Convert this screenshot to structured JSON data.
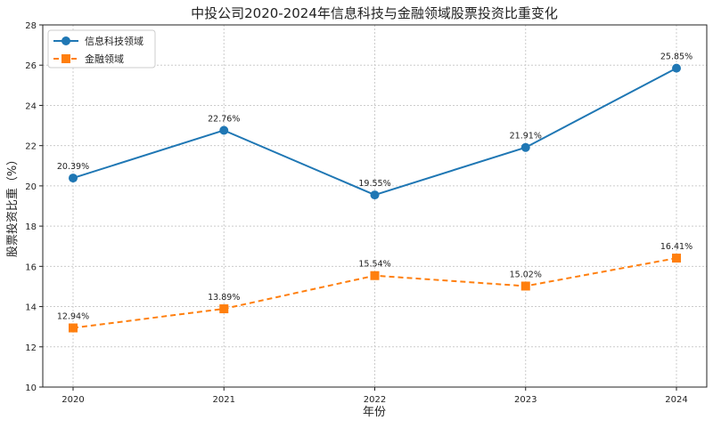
{
  "chart_data": {
    "type": "line",
    "title": "中投公司2020-2024年信息科技与金融领域股票投资比重变化",
    "xlabel": "年份",
    "ylabel": "股票投资比重（%）",
    "categories": [
      "2020",
      "2021",
      "2022",
      "2023",
      "2024"
    ],
    "ylim": [
      10,
      28
    ],
    "yticks": [
      10,
      12,
      14,
      16,
      18,
      20,
      22,
      24,
      26,
      28
    ],
    "grid": true,
    "legend_position": "top-left",
    "series": [
      {
        "name": "信息科技领域",
        "values": [
          20.39,
          22.76,
          19.55,
          21.91,
          25.85
        ],
        "labels": [
          "20.39%",
          "22.76%",
          "19.55%",
          "21.91%",
          "25.85%"
        ],
        "color": "#1f77b4",
        "marker": "circle",
        "linestyle": "solid"
      },
      {
        "name": "金融领域",
        "values": [
          12.94,
          13.89,
          15.54,
          15.02,
          16.41
        ],
        "labels": [
          "12.94%",
          "13.89%",
          "15.54%",
          "15.02%",
          "16.41%"
        ],
        "color": "#ff7f0e",
        "marker": "square",
        "linestyle": "dashed"
      }
    ]
  }
}
